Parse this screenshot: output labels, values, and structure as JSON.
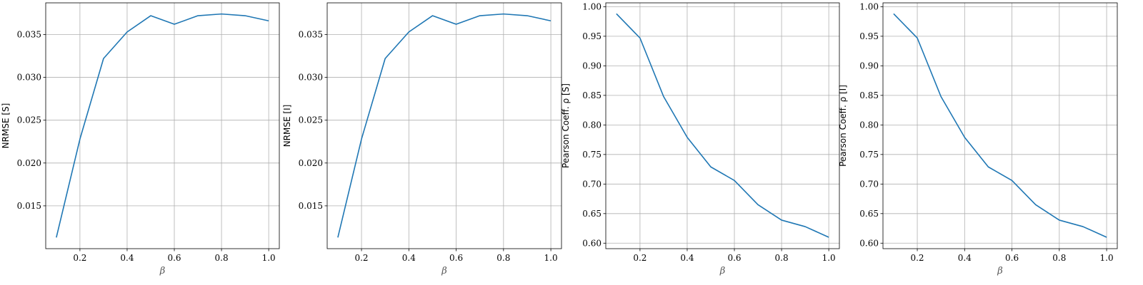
{
  "chart_data": [
    {
      "type": "line",
      "ylabel": "NRMSE [S]",
      "xlabel": "β",
      "x": [
        0.1,
        0.2,
        0.3,
        0.4,
        0.5,
        0.6,
        0.7,
        0.8,
        0.9,
        1.0
      ],
      "series": [
        {
          "values": [
            0.0113,
            0.0228,
            0.0322,
            0.0353,
            0.0372,
            0.0362,
            0.0372,
            0.0374,
            0.0372,
            0.0366
          ]
        }
      ],
      "xticks": [
        "0.2",
        "0.4",
        "0.6",
        "0.8",
        "1.0"
      ],
      "yticks": [
        "0.015",
        "0.020",
        "0.025",
        "0.030",
        "0.035"
      ],
      "xlim": [
        0.055,
        1.045
      ],
      "ylim": [
        0.01,
        0.0387
      ],
      "grid": true,
      "color": "#1f77b4"
    },
    {
      "type": "line",
      "ylabel": "NRMSE [I]",
      "xlabel": "β",
      "x": [
        0.1,
        0.2,
        0.3,
        0.4,
        0.5,
        0.6,
        0.7,
        0.8,
        0.9,
        1.0
      ],
      "series": [
        {
          "values": [
            0.0113,
            0.0228,
            0.0322,
            0.0353,
            0.0372,
            0.0362,
            0.0372,
            0.0374,
            0.0372,
            0.0366
          ]
        }
      ],
      "xticks": [
        "0.2",
        "0.4",
        "0.6",
        "0.8",
        "1.0"
      ],
      "yticks": [
        "0.015",
        "0.020",
        "0.025",
        "0.030",
        "0.035"
      ],
      "xlim": [
        0.055,
        1.045
      ],
      "ylim": [
        0.01,
        0.0387
      ],
      "grid": true,
      "color": "#1f77b4"
    },
    {
      "type": "line",
      "ylabel": "Pearson Coeff. ρ [S]",
      "xlabel": "β",
      "x": [
        0.1,
        0.2,
        0.3,
        0.4,
        0.5,
        0.6,
        0.7,
        0.8,
        0.9,
        1.0
      ],
      "series": [
        {
          "values": [
            0.988,
            0.947,
            0.848,
            0.779,
            0.729,
            0.706,
            0.665,
            0.639,
            0.628,
            0.61
          ]
        }
      ],
      "xticks": [
        "0.2",
        "0.4",
        "0.6",
        "0.8",
        "1.0"
      ],
      "yticks": [
        "0.60",
        "0.65",
        "0.70",
        "0.75",
        "0.80",
        "0.85",
        "0.90",
        "0.95",
        "1.00"
      ],
      "xlim": [
        0.055,
        1.045
      ],
      "ylim": [
        0.5907,
        1.0065
      ],
      "grid": true,
      "color": "#1f77b4"
    },
    {
      "type": "line",
      "ylabel": "Pearson Coeff. ρ [I]",
      "xlabel": "β",
      "x": [
        0.1,
        0.2,
        0.3,
        0.4,
        0.5,
        0.6,
        0.7,
        0.8,
        0.9,
        1.0
      ],
      "series": [
        {
          "values": [
            0.988,
            0.947,
            0.848,
            0.779,
            0.729,
            0.706,
            0.665,
            0.639,
            0.628,
            0.61
          ]
        }
      ],
      "xticks": [
        "0.2",
        "0.4",
        "0.6",
        "0.8",
        "1.0"
      ],
      "yticks": [
        "0.60",
        "0.65",
        "0.70",
        "0.75",
        "0.80",
        "0.85",
        "0.90",
        "0.95",
        "1.00"
      ],
      "xlim": [
        0.055,
        1.045
      ],
      "ylim": [
        0.5907,
        1.0065
      ],
      "grid": true,
      "color": "#1f77b4"
    }
  ]
}
